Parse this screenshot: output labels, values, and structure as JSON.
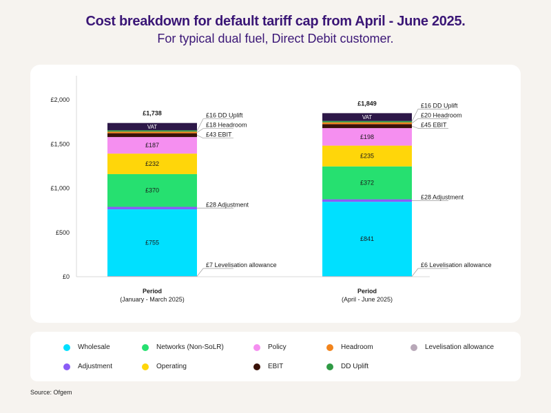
{
  "title": "Cost breakdown for default tariff cap from April - June 2025.",
  "subtitle": "For typical dual fuel, Direct Debit customer.",
  "source": "Source: Ofgem",
  "colors": {
    "Wholesale": "#00e0ff",
    "Adjustment": "#8b5cf6",
    "Networks (Non-SoLR)": "#26e070",
    "Operating": "#ffd60a",
    "Policy": "#f58ff0",
    "EBIT": "#3a1208",
    "Headroom": "#f2841c",
    "DD Uplift": "#2f9a44",
    "VAT": "#2d1848",
    "Levelisation allowance": "#b8a8b8"
  },
  "legend": [
    {
      "label": "Wholesale",
      "icon": "wholesale-dot"
    },
    {
      "label": "Networks (Non-SoLR)",
      "icon": "networks-dot"
    },
    {
      "label": "Policy",
      "icon": "policy-dot"
    },
    {
      "label": "Headroom",
      "icon": "headroom-dot"
    },
    {
      "label": "Levelisation allowance",
      "icon": "levelisation-dot"
    },
    {
      "label": "Adjustment",
      "icon": "adjustment-dot"
    },
    {
      "label": "Operating",
      "icon": "operating-dot"
    },
    {
      "label": "EBIT",
      "icon": "ebit-dot"
    },
    {
      "label": "DD Uplift",
      "icon": "dd-uplift-dot"
    }
  ],
  "chart_data": {
    "type": "bar",
    "stacked": true,
    "ylim": [
      0,
      2000
    ],
    "yticks": [
      0,
      500,
      1000,
      1500,
      2000
    ],
    "ytick_labels": [
      "£0",
      "£500",
      "£1,000",
      "£1,500",
      "£2,000"
    ],
    "bars": [
      {
        "category": "Period",
        "subcategory": "(January - March 2025)",
        "total": "£1,738",
        "segments": [
          {
            "name": "Levelisation allowance",
            "value": 7,
            "label": "",
            "callout": "£7 Levelisation allowance"
          },
          {
            "name": "Wholesale",
            "value": 755,
            "label": "£755",
            "callout": ""
          },
          {
            "name": "Adjustment",
            "value": 28,
            "label": "",
            "callout": "£28 Adjustment"
          },
          {
            "name": "Networks (Non-SoLR)",
            "value": 370,
            "label": "£370",
            "callout": ""
          },
          {
            "name": "Operating",
            "value": 232,
            "label": "£232",
            "callout": ""
          },
          {
            "name": "Policy",
            "value": 187,
            "label": "£187",
            "callout": ""
          },
          {
            "name": "EBIT",
            "value": 43,
            "label": "",
            "callout": "£43 EBIT"
          },
          {
            "name": "Headroom",
            "value": 18,
            "label": "",
            "callout": "£18 Headroom"
          },
          {
            "name": "DD Uplift",
            "value": 16,
            "label": "",
            "callout": "£16 DD Uplift"
          },
          {
            "name": "VAT",
            "value": 82,
            "label": "VAT",
            "callout": ""
          }
        ]
      },
      {
        "category": "Period",
        "subcategory": "(April - June 2025)",
        "total": "£1,849",
        "segments": [
          {
            "name": "Levelisation allowance",
            "value": 6,
            "label": "",
            "callout": "£6 Levelisation allowance"
          },
          {
            "name": "Wholesale",
            "value": 841,
            "label": "£841",
            "callout": ""
          },
          {
            "name": "Adjustment",
            "value": 28,
            "label": "",
            "callout": "£28 Adjustment"
          },
          {
            "name": "Networks (Non-SoLR)",
            "value": 372,
            "label": "£372",
            "callout": ""
          },
          {
            "name": "Operating",
            "value": 235,
            "label": "£235",
            "callout": ""
          },
          {
            "name": "Policy",
            "value": 198,
            "label": "£198",
            "callout": ""
          },
          {
            "name": "EBIT",
            "value": 45,
            "label": "",
            "callout": "£45 EBIT"
          },
          {
            "name": "Headroom",
            "value": 20,
            "label": "",
            "callout": "£20 Headroom"
          },
          {
            "name": "DD Uplift",
            "value": 16,
            "label": "",
            "callout": "£16 DD Uplift"
          },
          {
            "name": "VAT",
            "value": 88,
            "label": "VAT",
            "callout": ""
          }
        ]
      }
    ]
  }
}
